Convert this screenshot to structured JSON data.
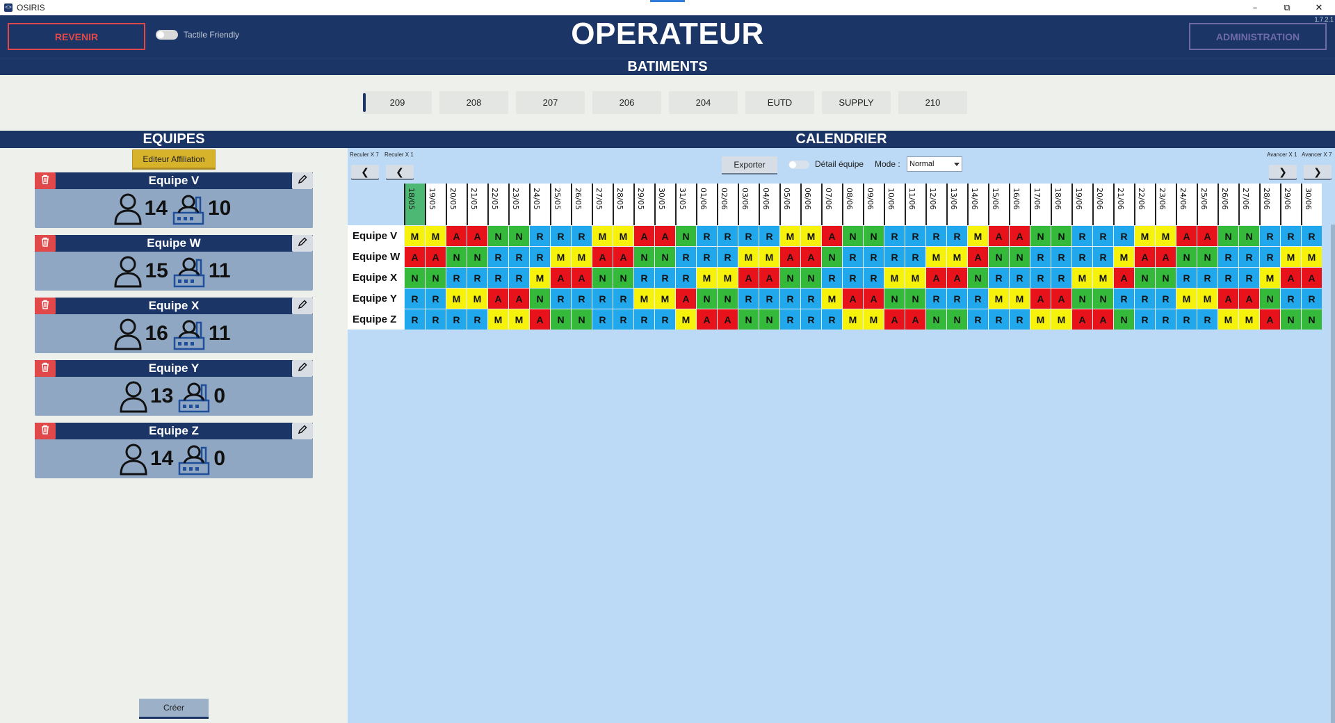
{
  "window": {
    "app_title": "OSIRIS",
    "version": "1.7.2.1"
  },
  "header": {
    "back_label": "REVENIR",
    "tactile_label": "Tactile Friendly",
    "title": "OPERATEUR",
    "admin_label": "ADMINISTRATION",
    "subtitle": "BATIMENTS"
  },
  "buildings": [
    "209",
    "208",
    "207",
    "206",
    "204",
    "EUTD",
    "SUPPLY",
    "210"
  ],
  "active_building": "209",
  "equipes": {
    "section_title": "EQUIPES",
    "affiliation_label": "Editeur Affiliation",
    "create_label": "Créer",
    "teams": [
      {
        "name": "Equipe V",
        "members": "14",
        "affiliated": "10"
      },
      {
        "name": "Equipe W",
        "members": "15",
        "affiliated": "11"
      },
      {
        "name": "Equipe X",
        "members": "16",
        "affiliated": "11"
      },
      {
        "name": "Equipe Y",
        "members": "13",
        "affiliated": "0"
      },
      {
        "name": "Equipe Z",
        "members": "14",
        "affiliated": "0"
      }
    ]
  },
  "calendar": {
    "section_title": "CALENDRIER",
    "nav": {
      "back7": "Reculer X 7",
      "back1": "Reculer X 1",
      "fwd1": "Avancer X 1",
      "fwd7": "Avancer X 7"
    },
    "export_label": "Exporter",
    "detail_label": "Détail équipe",
    "mode_label": "Mode :",
    "mode_value": "Normal",
    "dates": [
      "18/05",
      "19/05",
      "20/05",
      "21/05",
      "22/05",
      "23/05",
      "24/05",
      "25/05",
      "26/05",
      "27/05",
      "28/05",
      "29/05",
      "30/05",
      "31/05",
      "01/06",
      "02/06",
      "03/06",
      "04/06",
      "05/06",
      "06/06",
      "07/06",
      "08/06",
      "09/06",
      "10/06",
      "11/06",
      "12/06",
      "13/06",
      "14/06",
      "15/06",
      "16/06",
      "17/06",
      "18/06",
      "19/06",
      "20/06",
      "21/06",
      "22/06",
      "23/06",
      "24/06",
      "25/06",
      "26/06",
      "27/06",
      "28/06",
      "29/06",
      "30/06"
    ],
    "today": "18/05",
    "rows": [
      {
        "team": "Equipe V",
        "shifts": [
          "M",
          "M",
          "A",
          "A",
          "N",
          "N",
          "R",
          "R",
          "R",
          "M",
          "M",
          "A",
          "A",
          "N",
          "R",
          "R",
          "R",
          "R",
          "M",
          "M",
          "A",
          "N",
          "N",
          "R",
          "R",
          "R",
          "R",
          "M",
          "A",
          "A",
          "N",
          "N",
          "R",
          "R",
          "R",
          "M",
          "M",
          "A",
          "A",
          "N",
          "N",
          "R",
          "R",
          "R"
        ]
      },
      {
        "team": "Equipe W",
        "shifts": [
          "A",
          "A",
          "N",
          "N",
          "R",
          "R",
          "R",
          "M",
          "M",
          "A",
          "A",
          "N",
          "N",
          "R",
          "R",
          "R",
          "M",
          "M",
          "A",
          "A",
          "N",
          "R",
          "R",
          "R",
          "R",
          "M",
          "M",
          "A",
          "N",
          "N",
          "R",
          "R",
          "R",
          "R",
          "M",
          "A",
          "A",
          "N",
          "N",
          "R",
          "R",
          "R",
          "M",
          "M"
        ]
      },
      {
        "team": "Equipe X",
        "shifts": [
          "N",
          "N",
          "R",
          "R",
          "R",
          "R",
          "M",
          "A",
          "A",
          "N",
          "N",
          "R",
          "R",
          "R",
          "M",
          "M",
          "A",
          "A",
          "N",
          "N",
          "R",
          "R",
          "R",
          "M",
          "M",
          "A",
          "A",
          "N",
          "R",
          "R",
          "R",
          "R",
          "M",
          "M",
          "A",
          "N",
          "N",
          "R",
          "R",
          "R",
          "R",
          "M",
          "A",
          "A"
        ]
      },
      {
        "team": "Equipe Y",
        "shifts": [
          "R",
          "R",
          "M",
          "M",
          "A",
          "A",
          "N",
          "R",
          "R",
          "R",
          "R",
          "M",
          "M",
          "A",
          "N",
          "N",
          "R",
          "R",
          "R",
          "R",
          "M",
          "A",
          "A",
          "N",
          "N",
          "R",
          "R",
          "R",
          "M",
          "M",
          "A",
          "A",
          "N",
          "N",
          "R",
          "R",
          "R",
          "M",
          "M",
          "A",
          "A",
          "N",
          "R",
          "R"
        ]
      },
      {
        "team": "Equipe Z",
        "shifts": [
          "R",
          "R",
          "R",
          "R",
          "M",
          "M",
          "A",
          "N",
          "N",
          "R",
          "R",
          "R",
          "R",
          "M",
          "A",
          "A",
          "N",
          "N",
          "R",
          "R",
          "R",
          "M",
          "M",
          "A",
          "A",
          "N",
          "N",
          "R",
          "R",
          "R",
          "M",
          "M",
          "A",
          "A",
          "N",
          "R",
          "R",
          "R",
          "R",
          "M",
          "M",
          "A",
          "N",
          "N"
        ]
      }
    ]
  },
  "colors": {
    "M": "#f7f20b",
    "A": "#e8131a",
    "N": "#34b93b",
    "R": "#21a7ec",
    "header": "#1a3566"
  }
}
